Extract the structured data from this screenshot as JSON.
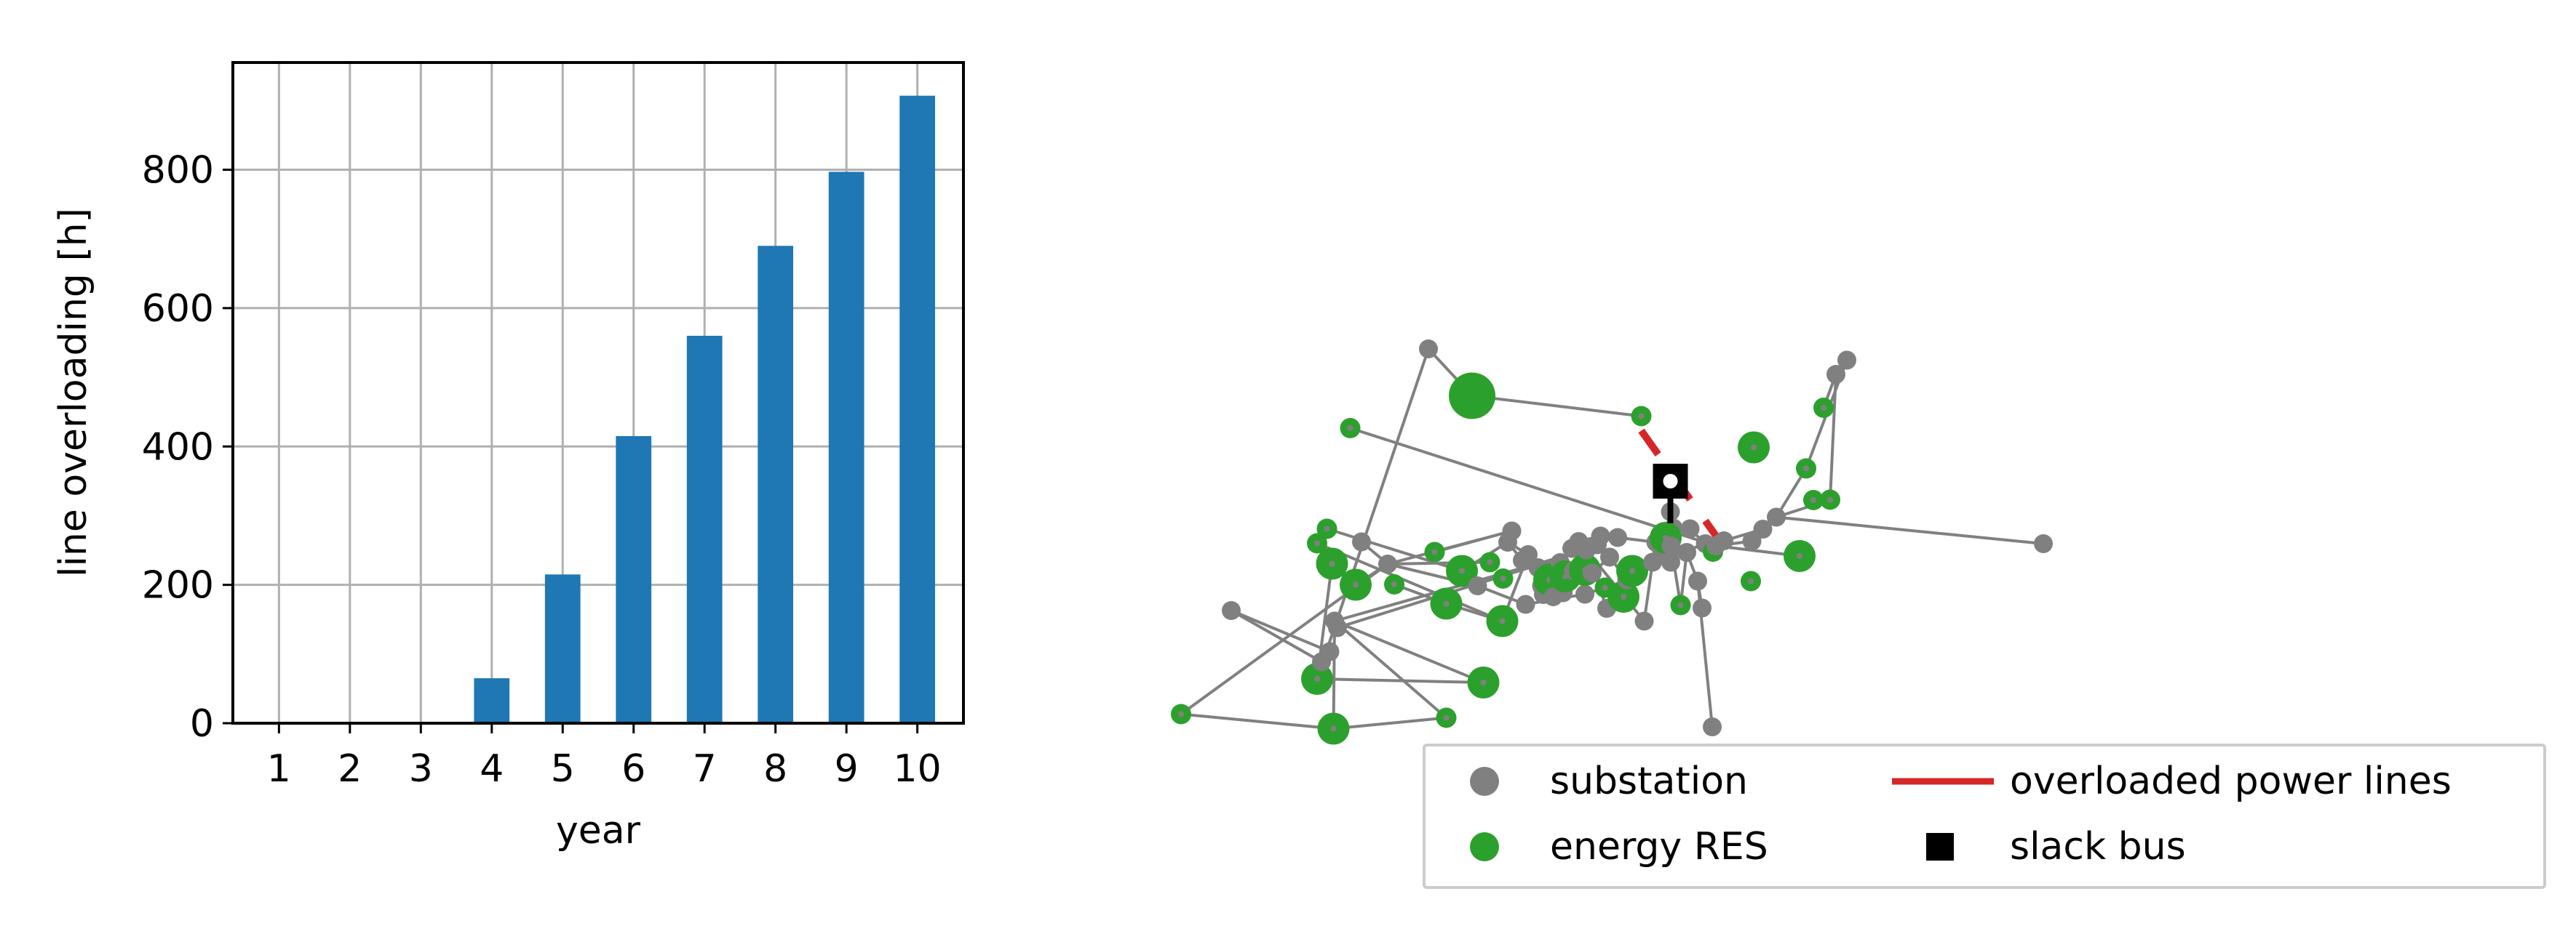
{
  "chart_data": [
    {
      "type": "bar",
      "xlabel": "year",
      "ylabel": "line overloading [h]",
      "categories": [
        "1",
        "2",
        "3",
        "4",
        "5",
        "6",
        "7",
        "8",
        "9",
        "10"
      ],
      "values": [
        0,
        0,
        0,
        65,
        215,
        415,
        560,
        690,
        797,
        907
      ],
      "ylim": [
        0,
        955
      ],
      "yticks": [
        "0",
        "200",
        "400",
        "600",
        "800"
      ],
      "grid": true,
      "bar_color": "#1f77b4"
    },
    {
      "type": "scatter",
      "subtype": "network-graph",
      "axes_visible": false,
      "legend_position": "bottom-right",
      "legend": [
        {
          "label": "substation",
          "marker": "circle",
          "color": "#808080"
        },
        {
          "label": "overloaded power lines",
          "marker": "line",
          "color": "#d62728"
        },
        {
          "label": "energy RES",
          "marker": "circle",
          "color": "#2ca02c"
        },
        {
          "label": "slack bus",
          "marker": "square",
          "color": "#000000"
        }
      ],
      "colors": {
        "edge": "#808080",
        "substation": "#808080",
        "res": "#2ca02c",
        "overloaded": "#d62728",
        "slack": "#000000"
      },
      "nodes": [
        {
          "x": 138,
          "y": -30,
          "type": "substation"
        },
        {
          "x": 0,
          "y": 255,
          "type": "res"
        },
        {
          "x": 419,
          "y": 295,
          "type": "res_large"
        },
        {
          "x": 729,
          "y": 265,
          "type": "res"
        },
        {
          "x": 374,
          "y": 158,
          "type": "res_large"
        },
        {
          "x": 831,
          "y": 168,
          "type": "res_large"
        },
        {
          "x": 386,
          "y": 111,
          "type": "substation"
        },
        {
          "x": 409,
          "y": 83,
          "type": "substation"
        },
        {
          "x": 422,
          "y": -1,
          "type": "substation"
        },
        {
          "x": 430,
          "y": 17,
          "type": "substation"
        },
        {
          "x": 480,
          "y": -101,
          "type": "res_large"
        },
        {
          "x": 415,
          "y": -159,
          "type": "res_large"
        },
        {
          "x": 374,
          "y": -215,
          "type": "res"
        },
        {
          "x": 401,
          "y": -255,
          "type": "res"
        },
        {
          "x": 496,
          "y": -219,
          "type": "substation"
        },
        {
          "x": 568,
          "y": -158,
          "type": "substation"
        },
        {
          "x": 586,
          "y": -102,
          "type": "res"
        },
        {
          "x": 697,
          "y": -191,
          "type": "res"
        },
        {
          "x": 729,
          "y": -49,
          "type": "res_large"
        },
        {
          "x": 772,
          "y": -139,
          "type": "res_large"
        },
        {
          "x": 815,
          "y": -98,
          "type": "substation"
        },
        {
          "x": 849,
          "y": -163,
          "type": "res"
        },
        {
          "x": 883,
          "y": -1,
          "type": "res_large"
        },
        {
          "x": 885,
          "y": -118,
          "type": "res"
        },
        {
          "x": 898,
          "y": -218,
          "type": "substation"
        },
        {
          "x": 909,
          "y": -249,
          "type": "substation"
        },
        {
          "x": 938,
          "y": -168,
          "type": "substation"
        },
        {
          "x": 947,
          "y": -47,
          "type": "substation"
        },
        {
          "x": 954,
          "y": -184,
          "type": "substation"
        },
        {
          "x": 981,
          "y": -148,
          "type": "substation"
        },
        {
          "x": 991,
          "y": -98,
          "type": "substation"
        },
        {
          "x": 1009,
          "y": -141,
          "type": "substation"
        },
        {
          "x": 996,
          "y": -74,
          "type": "substation"
        },
        {
          "x": 1012,
          "y": -115,
          "type": "res_large"
        },
        {
          "x": 1023,
          "y": -68,
          "type": "substation"
        },
        {
          "x": 1042,
          "y": -162,
          "type": "substation"
        },
        {
          "x": 1050,
          "y": -79,
          "type": "substation"
        },
        {
          "x": 1056,
          "y": -124,
          "type": "res_large"
        },
        {
          "x": 1074,
          "y": -201,
          "type": "substation"
        },
        {
          "x": 1079,
          "y": -140,
          "type": "substation"
        },
        {
          "x": 1093,
          "y": -220,
          "type": "substation"
        },
        {
          "x": 1110,
          "y": -75,
          "type": "substation"
        },
        {
          "x": 1110,
          "y": -142,
          "type": "res_large"
        },
        {
          "x": 1114,
          "y": -197,
          "type": "substation"
        },
        {
          "x": 1130,
          "y": -133,
          "type": "substation"
        },
        {
          "x": 1144,
          "y": -211,
          "type": "substation"
        },
        {
          "x": 1153,
          "y": -235,
          "type": "substation"
        },
        {
          "x": 1165,
          "y": -93,
          "type": "res"
        },
        {
          "x": 1170,
          "y": -36,
          "type": "substation"
        },
        {
          "x": 1178,
          "y": -177,
          "type": "substation"
        },
        {
          "x": 1200,
          "y": -231,
          "type": "substation"
        },
        {
          "x": 1216,
          "y": -68,
          "type": "res_large"
        },
        {
          "x": 1225,
          "y": -115,
          "type": "substation"
        },
        {
          "x": 1240,
          "y": -139,
          "type": "res_large"
        },
        {
          "x": 1273,
          "y": -1,
          "type": "substation"
        },
        {
          "x": 1296,
          "y": -163,
          "type": "substation"
        },
        {
          "x": 1305,
          "y": -218,
          "type": "substation"
        },
        {
          "x": 1320,
          "y": -199,
          "type": "substation"
        },
        {
          "x": 1346,
          "y": -163,
          "type": "substation"
        },
        {
          "x": 1353,
          "y": -257,
          "type": "substation"
        },
        {
          "x": 1345,
          "y": -302,
          "type": "substation"
        },
        {
          "x": 1332,
          "y": -230,
          "type": "res_large"
        },
        {
          "x": 1347,
          "y": -208,
          "type": "substation"
        },
        {
          "x": 1373,
          "y": -45,
          "type": "res"
        },
        {
          "x": 1390,
          "y": -190,
          "type": "substation"
        },
        {
          "x": 1399,
          "y": -255,
          "type": "substation"
        },
        {
          "x": 1420,
          "y": -111,
          "type": "substation"
        },
        {
          "x": 1432,
          "y": -37,
          "type": "substation"
        },
        {
          "x": 1441,
          "y": -214,
          "type": "substation"
        },
        {
          "x": 1462,
          "y": -192,
          "type": "res"
        },
        {
          "x": 1470,
          "y": -208,
          "type": "substation"
        },
        {
          "x": 1492,
          "y": -222,
          "type": "substation"
        },
        {
          "x": 1566,
          "y": -111,
          "type": "res"
        },
        {
          "x": 1569,
          "y": -221,
          "type": "substation"
        },
        {
          "x": 1599,
          "y": -254,
          "type": "substation"
        },
        {
          "x": 1636,
          "y": -287,
          "type": "substation"
        },
        {
          "x": 1700,
          "y": -180,
          "type": "res_large"
        },
        {
          "x": 1718,
          "y": -421,
          "type": "res"
        },
        {
          "x": 1738,
          "y": -334,
          "type": "res"
        },
        {
          "x": 1766,
          "y": -588,
          "type": "res"
        },
        {
          "x": 1784,
          "y": -335,
          "type": "res"
        },
        {
          "x": 1800,
          "y": -680,
          "type": "substation"
        },
        {
          "x": 1830,
          "y": -719,
          "type": "substation"
        },
        {
          "x": 1574,
          "y": -479,
          "type": "res_large"
        },
        {
          "x": 1265,
          "y": -565,
          "type": "res"
        },
        {
          "x": 465,
          "y": -532,
          "type": "res"
        },
        {
          "x": 800,
          "y": -621,
          "type": "res_huge"
        },
        {
          "x": 680,
          "y": -750,
          "type": "substation"
        },
        {
          "x": 2370,
          "y": -214,
          "type": "substation"
        },
        {
          "x": 1460,
          "y": 290,
          "type": "substation"
        }
      ],
      "edges": [
        [
          0,
          7
        ],
        [
          0,
          6
        ],
        [
          1,
          2
        ],
        [
          1,
          15
        ],
        [
          2,
          3
        ],
        [
          2,
          8
        ],
        [
          3,
          8
        ],
        [
          4,
          11
        ],
        [
          4,
          5
        ],
        [
          5,
          8
        ],
        [
          6,
          7
        ],
        [
          8,
          43
        ],
        [
          9,
          43
        ],
        [
          10,
          15
        ],
        [
          11,
          12
        ],
        [
          12,
          22
        ],
        [
          13,
          19
        ],
        [
          14,
          15
        ],
        [
          15,
          25
        ],
        [
          15,
          21
        ],
        [
          16,
          18
        ],
        [
          17,
          25
        ],
        [
          18,
          22
        ],
        [
          19,
          24
        ],
        [
          22,
          28
        ],
        [
          24,
          26
        ],
        [
          26,
          31
        ],
        [
          28,
          29
        ],
        [
          29,
          33
        ],
        [
          31,
          35
        ],
        [
          32,
          36
        ],
        [
          33,
          37
        ],
        [
          36,
          42
        ],
        [
          37,
          44
        ],
        [
          39,
          45
        ],
        [
          40,
          46
        ],
        [
          41,
          47
        ],
        [
          43,
          48
        ],
        [
          44,
          49
        ],
        [
          46,
          50
        ],
        [
          47,
          51
        ],
        [
          48,
          53
        ],
        [
          49,
          52
        ],
        [
          50,
          56
        ],
        [
          51,
          53
        ],
        [
          53,
          55
        ],
        [
          54,
          55
        ],
        [
          56,
          57
        ],
        [
          57,
          58
        ],
        [
          58,
          62
        ],
        [
          59,
          65
        ],
        [
          60,
          61
        ],
        [
          62,
          63
        ],
        [
          63,
          64
        ],
        [
          64,
          66
        ],
        [
          65,
          69
        ],
        [
          66,
          67
        ],
        [
          68,
          70
        ],
        [
          69,
          71
        ],
        [
          70,
          73
        ],
        [
          71,
          74
        ],
        [
          73,
          74
        ],
        [
          74,
          75
        ],
        [
          75,
          88
        ],
        [
          75,
          77
        ],
        [
          75,
          80
        ],
        [
          76,
          70
        ],
        [
          77,
          82
        ],
        [
          79,
          81
        ],
        [
          80,
          81
        ],
        [
          86,
          87
        ],
        [
          86,
          84
        ],
        [
          87,
          4
        ],
        [
          85,
          70
        ],
        [
          89,
          66
        ],
        [
          15,
          20
        ],
        [
          20,
          27
        ],
        [
          27,
          41
        ],
        [
          43,
          54
        ],
        [
          39,
          31
        ],
        [
          28,
          24
        ],
        [
          34,
          35
        ],
        [
          53,
          68
        ]
      ],
      "overloaded_edges": [
        [
          84,
          70
        ]
      ],
      "slack_node": 60
    }
  ]
}
